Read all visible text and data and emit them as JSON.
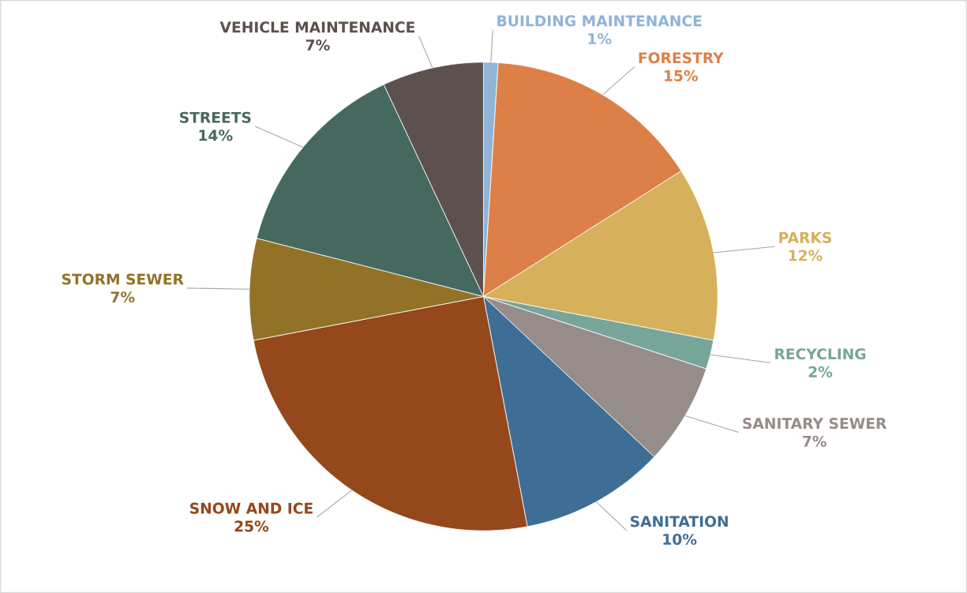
{
  "chart_data": {
    "type": "pie",
    "categories": [
      "BUILDING MAINTENANCE",
      "FORESTRY",
      "PARKS",
      "RECYCLING",
      "SANITARY SEWER",
      "SANITATION",
      "SNOW AND ICE",
      "STORM SEWER",
      "STREETS",
      "VEHICLE MAINTENANCE"
    ],
    "values": [
      1,
      15,
      12,
      2,
      7,
      10,
      25,
      7,
      14,
      7
    ],
    "value_labels": [
      "1%",
      "15%",
      "12%",
      "2%",
      "7%",
      "10%",
      "25%",
      "7%",
      "14%",
      "7%"
    ],
    "colors": [
      "#8fb4d6",
      "#dd8047",
      "#d6b05a",
      "#78a59a",
      "#968c8a",
      "#3e6e96",
      "#94481c",
      "#927226",
      "#46695f",
      "#5c514f"
    ]
  }
}
